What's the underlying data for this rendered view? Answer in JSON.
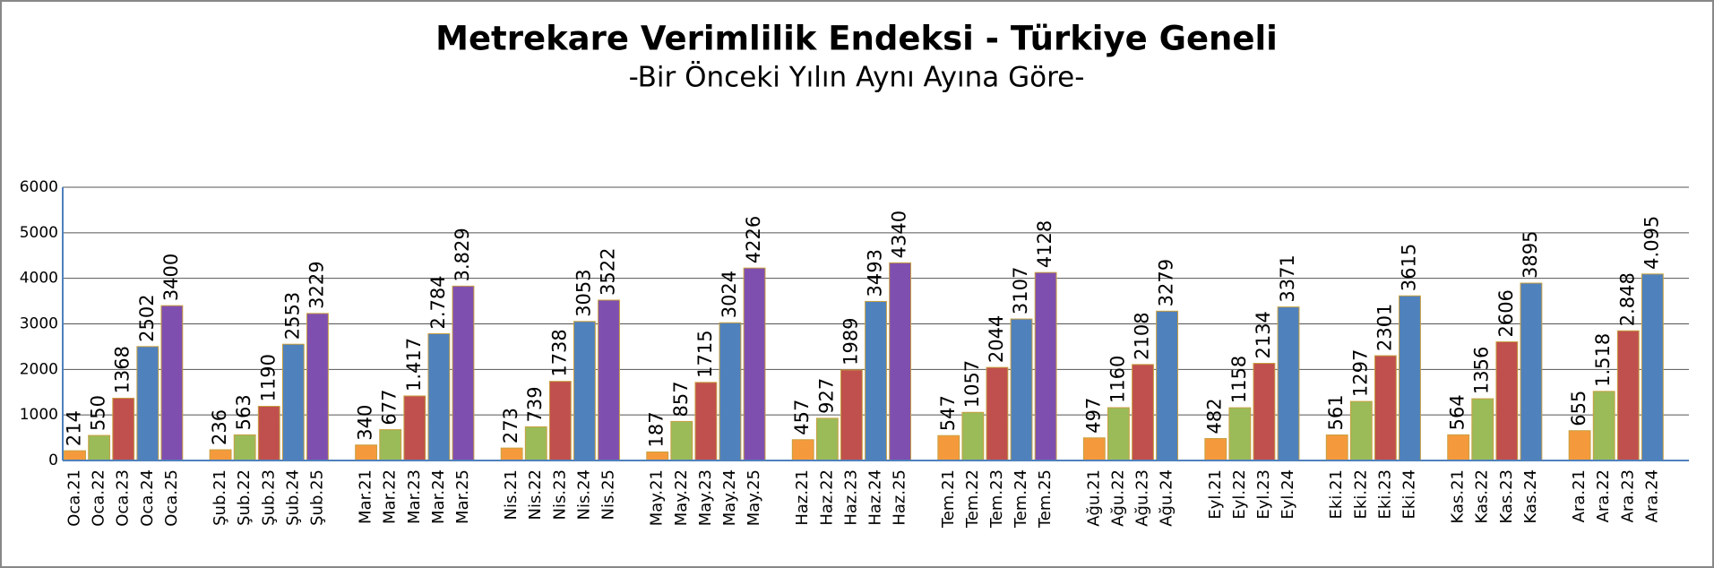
{
  "chart_data": {
    "type": "bar",
    "title": "Metrekare Verimlilik Endeksi - Türkiye Geneli",
    "subtitle": "-Bir Önceki Yılın Aynı Ayına Göre-",
    "colors": [
      "#f59a3c",
      "#9bbb59",
      "#c0504d",
      "#4f81bd",
      "#7f4fb0"
    ],
    "ylim": [
      0,
      6000
    ],
    "yticks": [
      0,
      1000,
      2000,
      3000,
      4000,
      5000,
      6000
    ],
    "grid": true,
    "groups": [
      {
        "categories": [
          "Oca.21",
          "Oca.22",
          "Oca.23",
          "Oca.24",
          "Oca.25"
        ],
        "values": [
          214,
          550,
          1368,
          2502,
          3400
        ]
      },
      {
        "categories": [
          "Şub.21",
          "Şub.22",
          "Şub.23",
          "Şub.24",
          "Şub.25"
        ],
        "values": [
          236,
          563,
          1190,
          2553,
          3229
        ]
      },
      {
        "categories": [
          "Mar.21",
          "Mar.22",
          "Mar.23",
          "Mar.24",
          "Mar.25"
        ],
        "values": [
          340,
          677,
          1417,
          2784,
          3829
        ],
        "value_labels": [
          "340",
          "677",
          "1.417",
          "2.784",
          "3.829"
        ]
      },
      {
        "categories": [
          "Nis.21",
          "Nis.22",
          "Nis.23",
          "Nis.24",
          "Nis.25"
        ],
        "values": [
          273,
          739,
          1738,
          3053,
          3522
        ]
      },
      {
        "categories": [
          "May.21",
          "May.22",
          "May.23",
          "May.24",
          "May.25"
        ],
        "values": [
          187,
          857,
          1715,
          3024,
          4226
        ]
      },
      {
        "categories": [
          "Haz.21",
          "Haz.22",
          "Haz.23",
          "Haz.24",
          "Haz.25"
        ],
        "values": [
          457,
          927,
          1989,
          3493,
          4340
        ]
      },
      {
        "categories": [
          "Tem.21",
          "Tem.22",
          "Tem.23",
          "Tem.24",
          "Tem.25"
        ],
        "values": [
          547,
          1057,
          2044,
          3107,
          4128
        ]
      },
      {
        "categories": [
          "Ağu.21",
          "Ağu.22",
          "Ağu.23",
          "Ağu.24"
        ],
        "values": [
          497,
          1160,
          2108,
          3279
        ]
      },
      {
        "categories": [
          "Eyl.21",
          "Eyl.22",
          "Eyl.23",
          "Eyl.24"
        ],
        "values": [
          482,
          1158,
          2134,
          3371
        ]
      },
      {
        "categories": [
          "Eki.21",
          "Eki.22",
          "Eki.23",
          "Eki.24"
        ],
        "values": [
          561,
          1297,
          2301,
          3615
        ]
      },
      {
        "categories": [
          "Kas.21",
          "Kas.22",
          "Kas.23",
          "Kas.24"
        ],
        "values": [
          564,
          1356,
          2606,
          3895
        ]
      },
      {
        "categories": [
          "Ara.21",
          "Ara.22",
          "Ara.23",
          "Ara.24"
        ],
        "values": [
          655,
          1518,
          2848,
          4095
        ],
        "value_labels": [
          "655",
          "1.518",
          "2.848",
          "4.095"
        ]
      }
    ]
  }
}
